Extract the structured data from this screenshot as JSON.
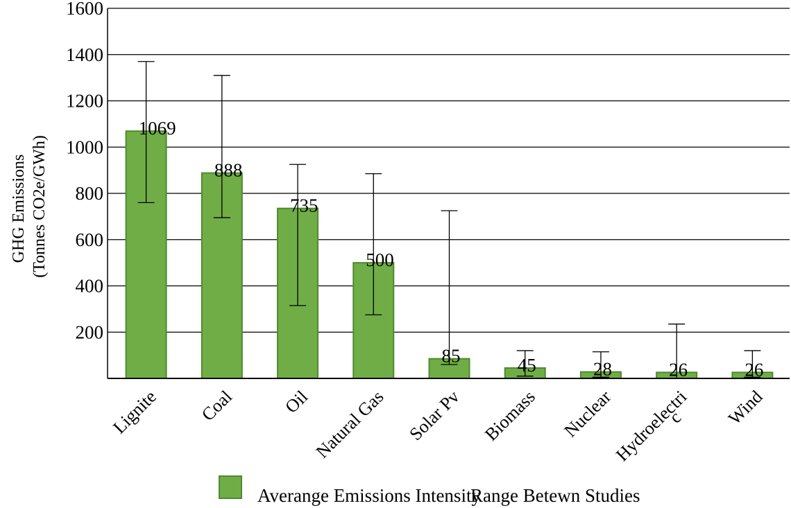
{
  "chart_data": {
    "type": "bar",
    "title": "",
    "xlabel": "",
    "ylabel": [
      "GHG Emissions",
      "(Tonnes CO2e/GWh)"
    ],
    "ylim": [
      0,
      1600
    ],
    "yticks": [
      200,
      400,
      600,
      800,
      1000,
      1200,
      1400,
      1600
    ],
    "grid": true,
    "categories": [
      "Lignite",
      "Coal",
      "Oil",
      "Natural Gas",
      "Solar Pv",
      "Biomass",
      "Nuclear",
      "Hydroelectric",
      "Wind"
    ],
    "category_labels": [
      "Lignite",
      "Coal",
      "Oil",
      "Natural Gas",
      "Solar Pv",
      "Biomass",
      "Nuclear",
      "Hydroelectri",
      "Wind"
    ],
    "category_label_overflow": {
      "Hydroelectric": "c"
    },
    "values": [
      1069,
      888,
      735,
      500,
      85,
      45,
      28,
      26,
      26
    ],
    "data_labels": [
      "1069",
      "888",
      "735",
      "500",
      "85",
      "45",
      "28",
      "26",
      "26"
    ],
    "ranges": [
      {
        "low": 760,
        "high": 1370
      },
      {
        "low": 695,
        "high": 1310
      },
      {
        "low": 315,
        "high": 925
      },
      {
        "low": 275,
        "high": 885
      },
      {
        "low": 60,
        "high": 725
      },
      {
        "low": 10,
        "high": 120
      },
      {
        "low": 5,
        "high": 115
      },
      {
        "low": 0,
        "high": 235
      },
      {
        "low": 5,
        "high": 120
      }
    ],
    "bar_color": "#70ad47",
    "bar_edge_color": "#4e8a2c",
    "legend": {
      "placement": "bottom",
      "entries": [
        "Averange Emissions Intensity",
        "Range Betewn Studies"
      ]
    }
  }
}
